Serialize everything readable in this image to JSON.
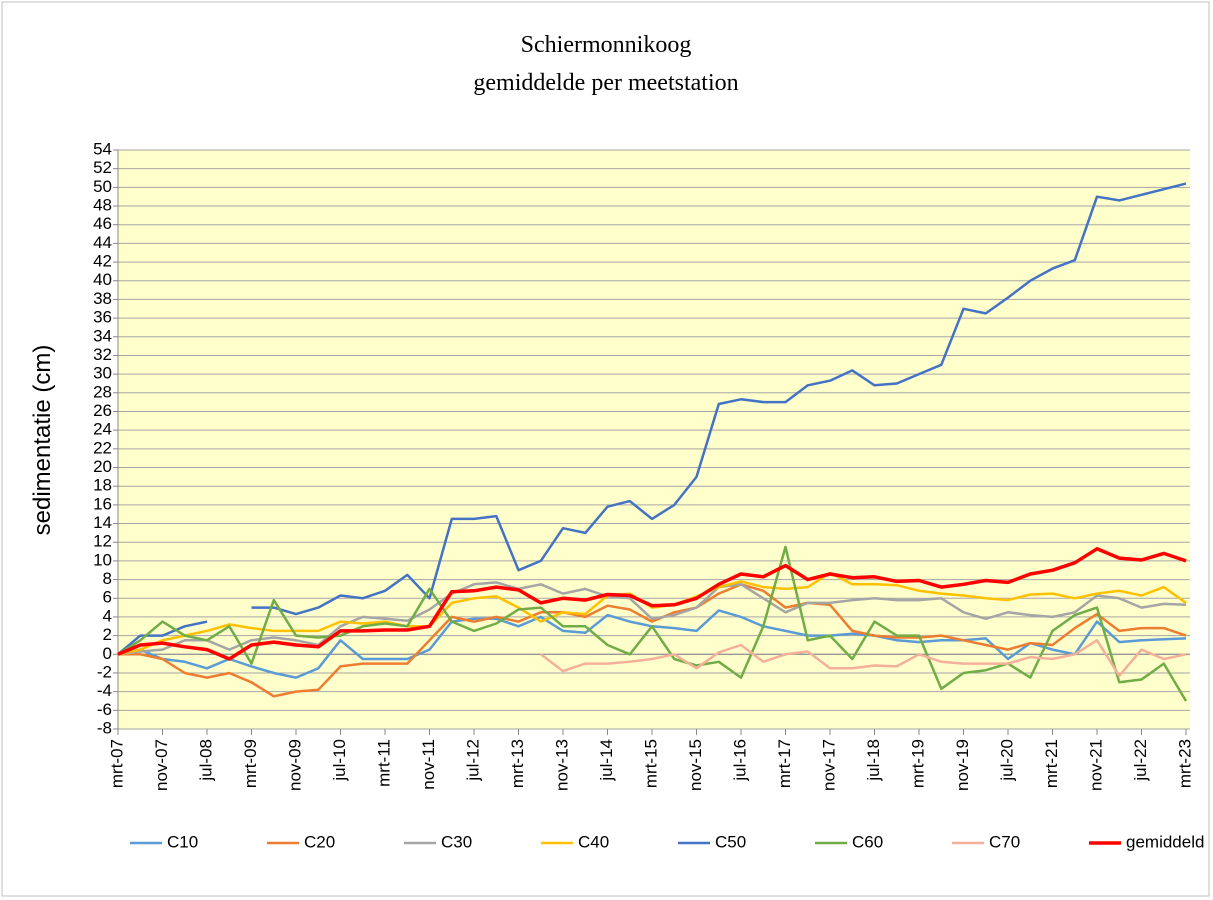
{
  "chart_data": {
    "type": "line",
    "title": "Schiermonnikoog",
    "subtitle": "gemiddelde per meetstation",
    "y_label": "sedimentatie (cm)",
    "categories": [
      "mrt-07",
      null,
      "nov-07",
      null,
      "jul-08",
      null,
      "mrt-09",
      null,
      "nov-09",
      null,
      "jul-10",
      null,
      "mrt-11",
      null,
      "nov-11",
      null,
      "jul-12",
      null,
      "mrt-13",
      null,
      "nov-13",
      null,
      "jul-14",
      null,
      "mrt-15",
      null,
      "nov-15",
      null,
      "jul-16",
      null,
      "mrt-17",
      null,
      "nov-17",
      null,
      "jul-18",
      null,
      "mrt-19",
      null,
      "nov-19",
      null,
      "jul-20",
      null,
      "mrt-21",
      null,
      "nov-21",
      null,
      "jul-22",
      null,
      "mrt-23"
    ],
    "ylim": [
      -8,
      54
    ],
    "yticks": [
      -8,
      -6,
      -4,
      -2,
      0,
      2,
      4,
      6,
      8,
      10,
      12,
      14,
      16,
      18,
      20,
      22,
      24,
      26,
      28,
      30,
      32,
      34,
      36,
      38,
      40,
      42,
      44,
      46,
      48,
      50,
      52,
      54
    ],
    "grid": true,
    "legend": "bottom",
    "series": [
      {
        "name": "C10",
        "color": "#5b9bd5",
        "values": [
          0,
          0.5,
          -0.5,
          -0.8,
          -1.5,
          -0.5,
          -1.3,
          -2,
          -2.5,
          -1.5,
          1.5,
          -0.5,
          -0.5,
          -0.5,
          0.5,
          3.5,
          3.8,
          3.8,
          3,
          4,
          2.5,
          2.3,
          4.2,
          3.5,
          3,
          2.8,
          2.5,
          4.7,
          4,
          3,
          2.5,
          2,
          2,
          2.2,
          2,
          1.5,
          1.3,
          1.5,
          1.5,
          1.7,
          -0.5,
          1.2,
          0.5,
          0,
          3.5,
          1.3,
          1.5,
          1.6,
          1.7
        ]
      },
      {
        "name": "C20",
        "color": "#ed7d31",
        "values": [
          0,
          0,
          -0.5,
          -2,
          -2.5,
          -2,
          -3,
          -4.5,
          -4,
          -3.8,
          -1.3,
          -1,
          -1,
          -1,
          1.5,
          4,
          3.5,
          4,
          3.5,
          4.5,
          4.5,
          4,
          5.2,
          4.8,
          3.5,
          4.5,
          5,
          6.5,
          7.5,
          6.8,
          5,
          5.5,
          5.3,
          2.5,
          2,
          1.8,
          1.8,
          2,
          1.5,
          1,
          0.5,
          1.2,
          1,
          2.8,
          4.3,
          2.5,
          2.8,
          2.8,
          2
        ]
      },
      {
        "name": "C30",
        "color": "#a5a5a5",
        "values": [
          0,
          0.3,
          0.5,
          1.5,
          1.5,
          0.5,
          1.5,
          1.8,
          1.5,
          1,
          3,
          4,
          3.8,
          3.6,
          4.8,
          6.5,
          7.5,
          7.7,
          7,
          7.5,
          6.5,
          7,
          6.2,
          6,
          3.8,
          4.2,
          5,
          7.2,
          7.5,
          6,
          4.5,
          5.5,
          5.5,
          5.8,
          6,
          5.8,
          5.8,
          6,
          4.5,
          3.8,
          4.5,
          4.2,
          4,
          4.5,
          6.3,
          6,
          5,
          5.4,
          5.3
        ]
      },
      {
        "name": "C40",
        "color": "#ffc000",
        "values": [
          0,
          0.5,
          1.5,
          2,
          2.5,
          3.2,
          2.8,
          2.5,
          2.5,
          2.5,
          3.5,
          3.3,
          3.5,
          3,
          3,
          5.5,
          6,
          6.2,
          5,
          3.5,
          4.5,
          4.3,
          6.3,
          6.5,
          5,
          5.3,
          6.2,
          7.2,
          7.8,
          7.2,
          7,
          7.2,
          8.7,
          7.5,
          7.5,
          7.4,
          6.8,
          6.5,
          6.3,
          6,
          5.8,
          6.4,
          6.5,
          6,
          6.5,
          6.8,
          6.3,
          7.2,
          5.5
        ]
      },
      {
        "name": "C50",
        "color": "#4472c4",
        "values": [
          0,
          2,
          2,
          3,
          3.5,
          null,
          5,
          5,
          4.3,
          5,
          6.3,
          6,
          6.8,
          8.5,
          6,
          14.5,
          14.5,
          14.8,
          9,
          10,
          13.5,
          13,
          15.8,
          16.4,
          14.5,
          16,
          19,
          26.8,
          27.3,
          27,
          27,
          28.8,
          29.3,
          30.4,
          28.8,
          29,
          30,
          31,
          37,
          36.5,
          38.2,
          40,
          41.3,
          42.2,
          49,
          48.6,
          49.2,
          49.8,
          50.4
        ]
      },
      {
        "name": "C60",
        "color": "#70ad47",
        "values": [
          0,
          1.5,
          3.5,
          2,
          1.5,
          3,
          -1,
          5.8,
          2,
          1.8,
          2,
          3,
          3.3,
          3,
          7,
          3.5,
          2.5,
          3.3,
          4.8,
          5,
          3,
          3,
          1,
          0,
          3,
          -0.5,
          -1.2,
          -0.8,
          -2.5,
          3,
          11.5,
          1.5,
          2,
          -0.5,
          3.5,
          2,
          2,
          -3.7,
          -2,
          -1.7,
          -1,
          -2.5,
          2.5,
          4.2,
          5,
          -3,
          -2.7,
          -1,
          -5
        ]
      },
      {
        "name": "C70",
        "color": "#f4b09a",
        "values": [
          null,
          null,
          null,
          null,
          null,
          null,
          null,
          null,
          null,
          null,
          null,
          null,
          null,
          null,
          null,
          null,
          null,
          null,
          null,
          0,
          -1.8,
          -1,
          -1,
          -0.8,
          -0.5,
          0,
          -1.5,
          0.2,
          1,
          -0.8,
          0,
          0.3,
          -1.5,
          -1.5,
          -1.2,
          -1.3,
          0,
          -0.8,
          -1,
          -1,
          -1,
          -0.3,
          -0.5,
          0,
          1.5,
          -2.3,
          0.5,
          -0.5,
          0
        ]
      },
      {
        "name": "gemiddeld",
        "color": "#ff0000",
        "values": [
          0,
          1,
          1.2,
          0.8,
          0.5,
          -0.5,
          1,
          1.3,
          1,
          0.8,
          2.5,
          2.5,
          2.6,
          2.6,
          3,
          6.7,
          6.8,
          7.2,
          6.9,
          5.5,
          6,
          5.8,
          6.4,
          6.3,
          5.2,
          5.3,
          6,
          7.5,
          8.6,
          8.3,
          9.5,
          8,
          8.6,
          8.2,
          8.3,
          7.8,
          7.9,
          7.2,
          7.5,
          7.9,
          7.7,
          8.6,
          9,
          9.8,
          11.3,
          10.3,
          10.1,
          10.8,
          10
        ]
      }
    ]
  }
}
